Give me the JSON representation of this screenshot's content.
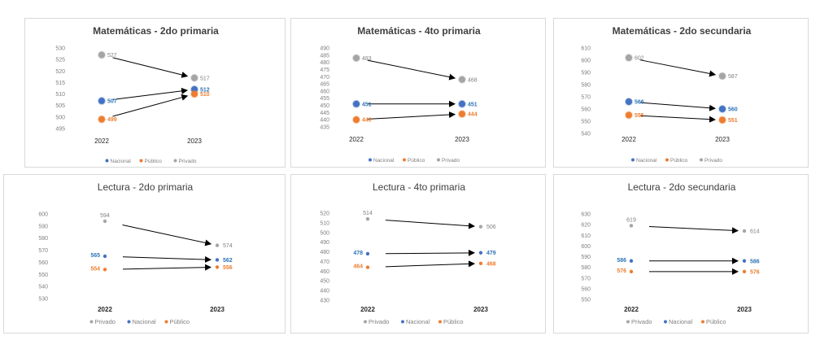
{
  "chart_data": [
    {
      "type": "slope",
      "title": "Matemáticas - 2do primaria",
      "title_bold": true,
      "categories": [
        "2022",
        "2023"
      ],
      "ylim": [
        495,
        530
      ],
      "y_ticks": [
        "495",
        "500",
        "505",
        "510",
        "515",
        "520",
        "525",
        "530"
      ],
      "legend": [
        "Nacional",
        "Público",
        "Privado"
      ],
      "legend_placement": "bottom",
      "series": [
        {
          "name": "Nacional",
          "values": [
            507,
            512
          ],
          "labels": [
            "507",
            "512"
          ]
        },
        {
          "name": "Público",
          "values": [
            499,
            510
          ],
          "labels": [
            "499",
            "510"
          ]
        },
        {
          "name": "Privado",
          "values": [
            527,
            517
          ],
          "labels": [
            "527",
            "517"
          ]
        }
      ]
    },
    {
      "type": "slope",
      "title": "Matemáticas - 4to primaria",
      "title_bold": true,
      "categories": [
        "2022",
        "2023"
      ],
      "ylim": [
        435,
        490
      ],
      "y_ticks": [
        "435",
        "440",
        "445",
        "450",
        "455",
        "460",
        "465",
        "470",
        "475",
        "480",
        "485",
        "490"
      ],
      "legend": [
        "Nacional",
        "Público",
        "Privado"
      ],
      "legend_placement": "bottom",
      "series": [
        {
          "name": "Nacional",
          "values": [
            451,
            451
          ],
          "labels": [
            "451",
            "451"
          ]
        },
        {
          "name": "Público",
          "values": [
            440,
            444
          ],
          "labels": [
            "440",
            "444"
          ]
        },
        {
          "name": "Privado",
          "values": [
            483,
            468
          ],
          "labels": [
            "483",
            "468"
          ]
        }
      ]
    },
    {
      "type": "slope",
      "title": "Matemáticas - 2do secundaria",
      "title_bold": true,
      "categories": [
        "2022",
        "2023"
      ],
      "ylim": [
        540,
        610
      ],
      "y_ticks": [
        "540",
        "550",
        "560",
        "570",
        "580",
        "590",
        "600",
        "610"
      ],
      "legend": [
        "Nacional",
        "Público",
        "Privado"
      ],
      "legend_placement": "bottom",
      "series": [
        {
          "name": "Nacional",
          "values": [
            566,
            560
          ],
          "labels": [
            "566",
            "560"
          ]
        },
        {
          "name": "Público",
          "values": [
            555,
            551
          ],
          "labels": [
            "555",
            "551"
          ]
        },
        {
          "name": "Privado",
          "values": [
            602,
            587
          ],
          "labels": [
            "602",
            "587"
          ]
        }
      ]
    },
    {
      "type": "slope",
      "title": "Lectura - 2do primaria",
      "title_bold": false,
      "categories": [
        "2022",
        "2023"
      ],
      "ylim": [
        530,
        600
      ],
      "y_ticks": [
        "530",
        "540",
        "550",
        "560",
        "570",
        "580",
        "590",
        "600"
      ],
      "legend": [
        "Privado",
        "Nacional",
        "Público"
      ],
      "legend_placement": "bottom",
      "series": [
        {
          "name": "Privado",
          "values": [
            594,
            574
          ],
          "labels": [
            "594",
            "574"
          ]
        },
        {
          "name": "Nacional",
          "values": [
            565,
            562
          ],
          "labels": [
            "565",
            "562"
          ]
        },
        {
          "name": "Público",
          "values": [
            554,
            556
          ],
          "labels": [
            "554",
            "556"
          ]
        }
      ]
    },
    {
      "type": "slope",
      "title": "Lectura - 4to primaria",
      "title_bold": false,
      "categories": [
        "2022",
        "2023"
      ],
      "ylim": [
        430,
        520
      ],
      "y_ticks": [
        "430",
        "440",
        "450",
        "460",
        "470",
        "480",
        "490",
        "500",
        "510",
        "520"
      ],
      "legend": [
        "Privado",
        "Nacional",
        "Público"
      ],
      "legend_placement": "bottom",
      "series": [
        {
          "name": "Privado",
          "values": [
            514,
            506
          ],
          "labels": [
            "514",
            "506"
          ]
        },
        {
          "name": "Nacional",
          "values": [
            478,
            479
          ],
          "labels": [
            "478",
            "479"
          ]
        },
        {
          "name": "Público",
          "values": [
            464,
            468
          ],
          "labels": [
            "464",
            "468"
          ]
        }
      ]
    },
    {
      "type": "slope",
      "title": "Lectura - 2do secundaria",
      "title_bold": false,
      "categories": [
        "2022",
        "2023"
      ],
      "ylim": [
        550,
        630
      ],
      "y_ticks": [
        "550",
        "560",
        "570",
        "580",
        "590",
        "600",
        "610",
        "620",
        "630"
      ],
      "legend": [
        "Privado",
        "Nacional",
        "Público"
      ],
      "legend_placement": "bottom",
      "series": [
        {
          "name": "Privado",
          "values": [
            619,
            614
          ],
          "labels": [
            "619",
            "614"
          ]
        },
        {
          "name": "Nacional",
          "values": [
            586,
            586
          ],
          "labels": [
            "586",
            "586"
          ]
        },
        {
          "name": "Público",
          "values": [
            576,
            576
          ],
          "labels": [
            "576",
            "576"
          ]
        }
      ]
    }
  ],
  "colors": {
    "Nacional": "#4472c4",
    "Público": "#ed7d31",
    "Privado": "#a5a5a5",
    "Nacional_label": "#2e75b6",
    "Público_label": "#ed7d31",
    "Privado_label": "#7f7f7f",
    "axis_text": "#7f7f7f",
    "title_text": "#404040",
    "category_text": "#262626",
    "arrow": "#000000"
  }
}
